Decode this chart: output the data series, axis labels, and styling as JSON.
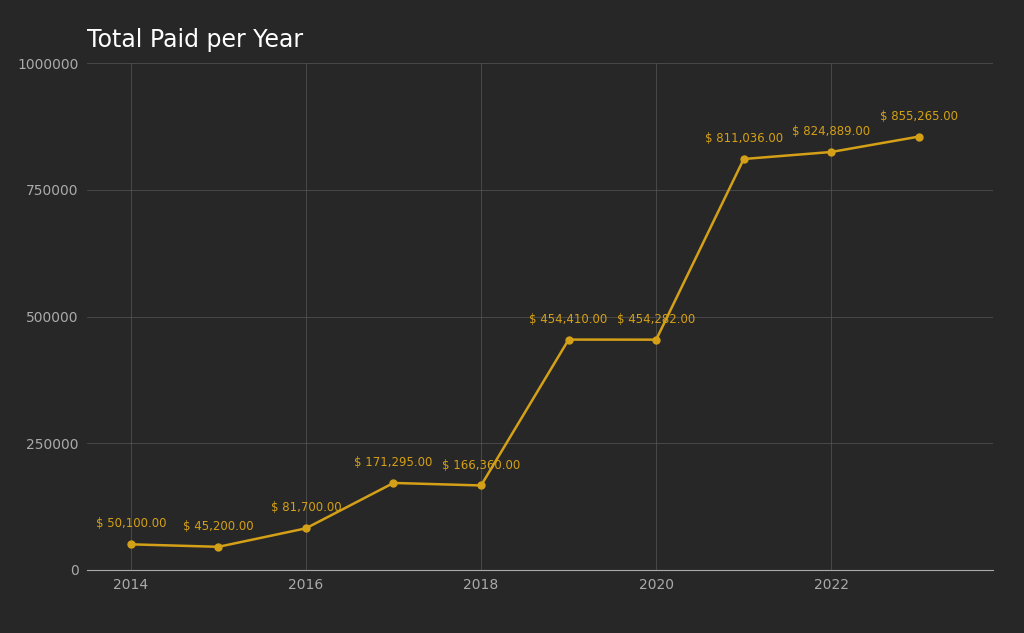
{
  "years": [
    2014,
    2015,
    2016,
    2017,
    2018,
    2019,
    2020,
    2021,
    2022,
    2023
  ],
  "values": [
    50100,
    45200,
    81700,
    171295,
    166360,
    454410,
    454282,
    811036,
    824889,
    855265
  ],
  "labels": [
    "$ 50,100.00",
    "$ 45,200.00",
    "$ 81,700.00",
    "$ 171,295.00",
    "$ 166,360.00",
    "$ 454,410.00",
    "$ 454,282.00",
    "$ 811,036.00",
    "$ 824,889.00",
    "$ 855,265.00"
  ],
  "title": "Total Paid per Year",
  "background_color": "#272727",
  "line_color": "#d4a017",
  "marker_color": "#d4a017",
  "label_color": "#d4a017",
  "title_color": "#ffffff",
  "tick_color": "#aaaaaa",
  "grid_color": "#555555",
  "ylim": [
    0,
    1000000
  ],
  "yticks": [
    0,
    250000,
    500000,
    750000,
    1000000
  ],
  "title_fontsize": 17,
  "label_fontsize": 8.5,
  "tick_fontsize": 10
}
